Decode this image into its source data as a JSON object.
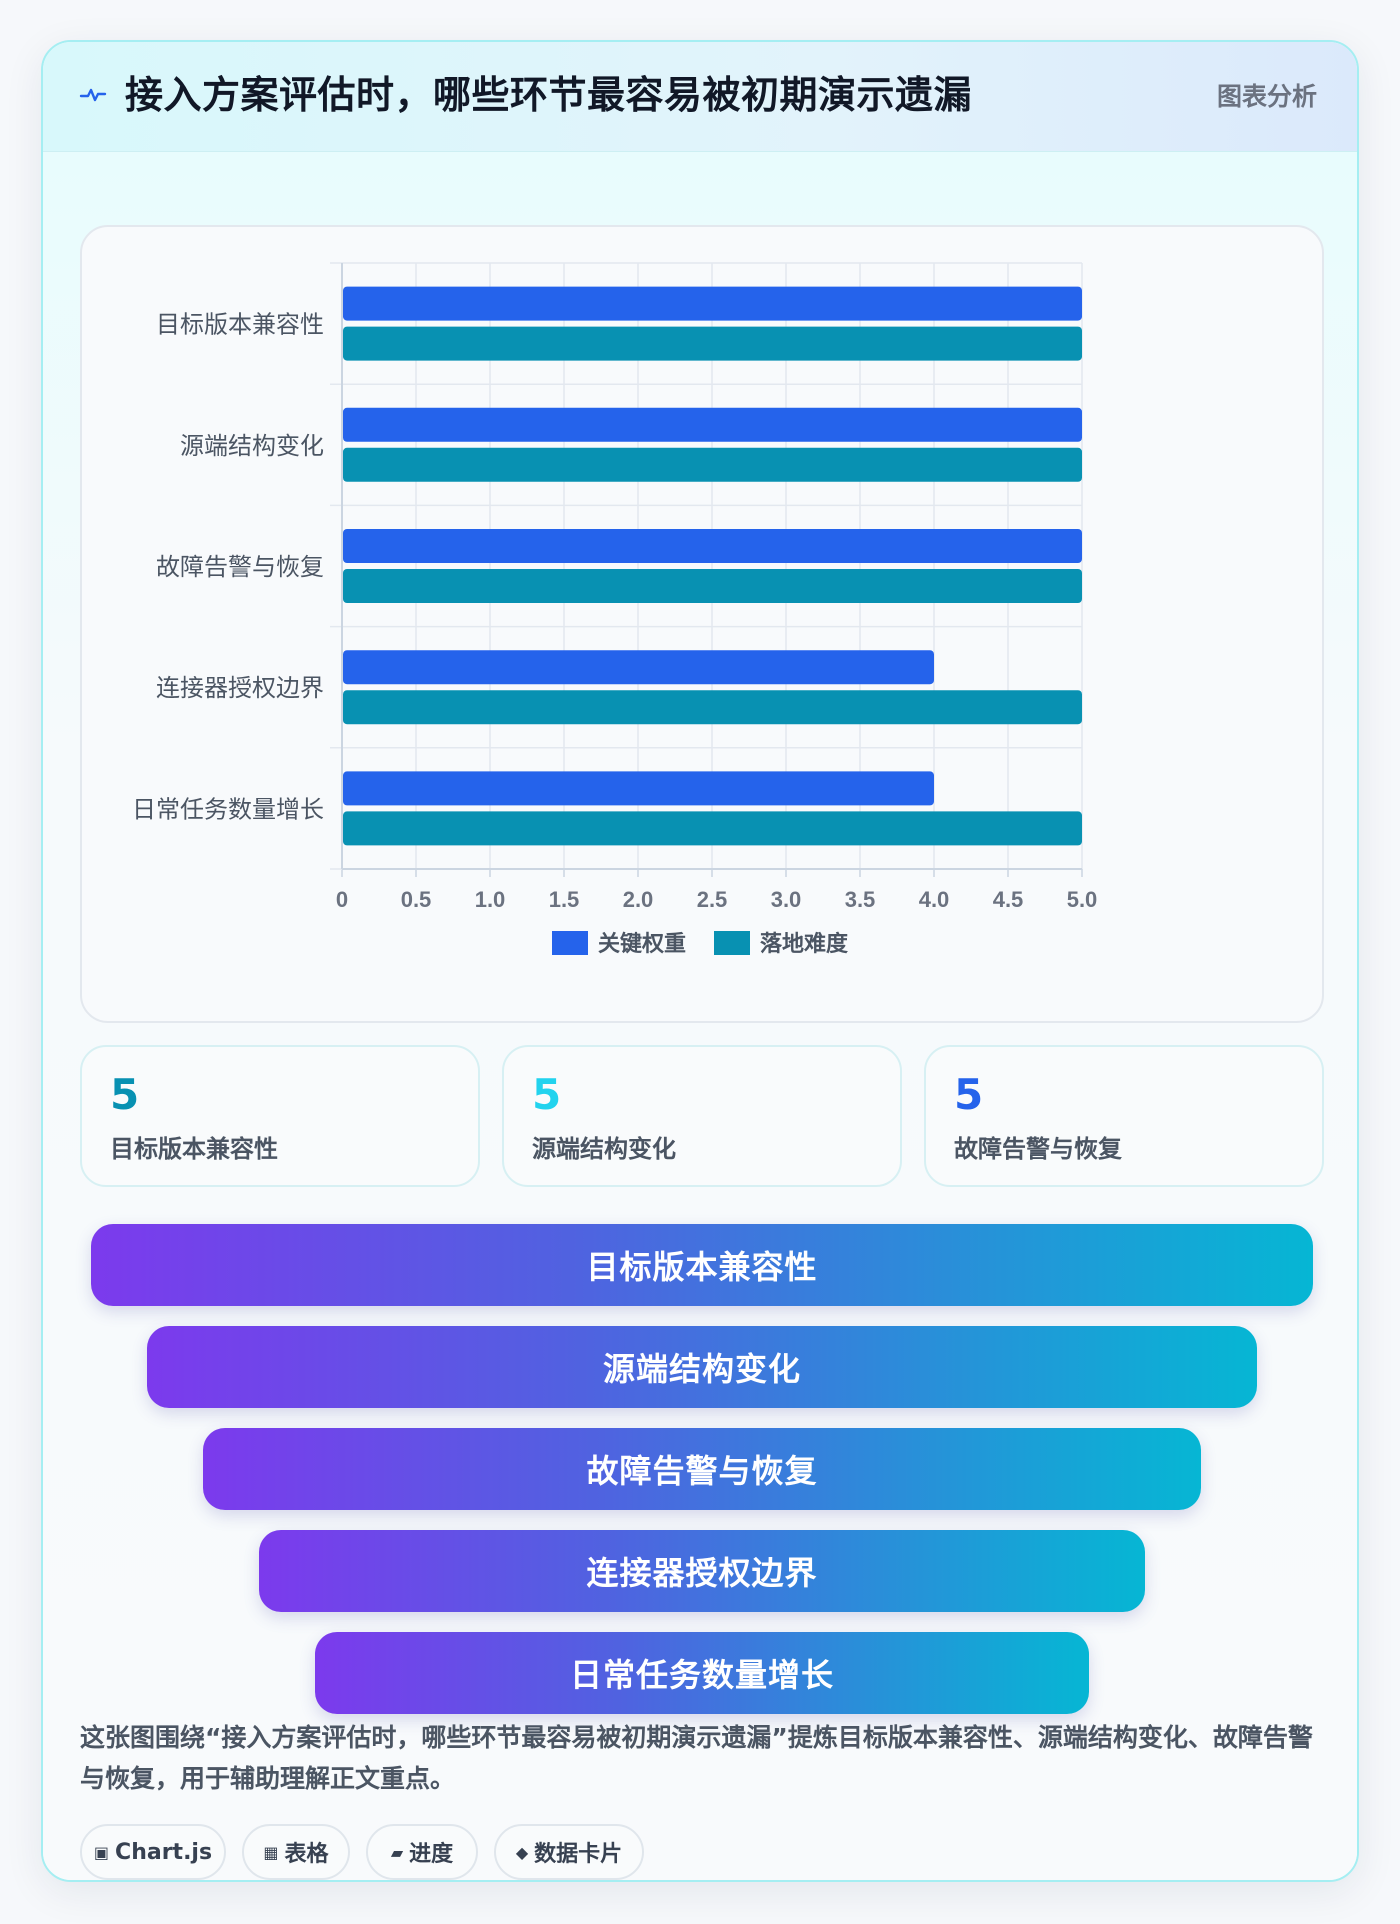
{
  "header": {
    "icon": "pulse-icon",
    "title": "接入方案评估时，哪些环节最容易被初期演示遗漏",
    "badge": "图表分析"
  },
  "chart_data": {
    "type": "bar",
    "orientation": "horizontal",
    "categories": [
      "目标版本兼容性",
      "源端结构变化",
      "故障告警与恢复",
      "连接器授权边界",
      "日常任务数量增长"
    ],
    "series": [
      {
        "name": "关键权重",
        "color": "#2563eb",
        "values": [
          5,
          5,
          5,
          4,
          4
        ]
      },
      {
        "name": "落地难度",
        "color": "#0891b2",
        "values": [
          5,
          5,
          5,
          5,
          5
        ]
      }
    ],
    "xlim": [
      0,
      5
    ],
    "x_ticks": [
      "0",
      "0.5",
      "1.0",
      "1.5",
      "2.0",
      "2.5",
      "3.0",
      "3.5",
      "4.0",
      "4.5",
      "5.0"
    ],
    "grid": true,
    "legend": "bottom"
  },
  "stats": [
    {
      "value": "5",
      "label": "目标版本兼容性",
      "color": "#0891b2"
    },
    {
      "value": "5",
      "label": "源端结构变化",
      "color": "#22d3ee"
    },
    {
      "value": "5",
      "label": "故障告警与恢复",
      "color": "#2563eb"
    }
  ],
  "funnel": [
    "目标版本兼容性",
    "源端结构变化",
    "故障告警与恢复",
    "连接器授权边界",
    "日常任务数量增长"
  ],
  "description": "这张图围绕“接入方案评估时，哪些环节最容易被初期演示遗漏”提炼目标版本兼容性、源端结构变化、故障告警与恢复，用于辅助理解正文重点。",
  "tags": [
    {
      "icon": "▣",
      "label": "Chart.js"
    },
    {
      "icon": "▦",
      "label": "表格"
    },
    {
      "icon": "▰",
      "label": "进度"
    },
    {
      "icon": "◆",
      "label": "数据卡片"
    }
  ]
}
